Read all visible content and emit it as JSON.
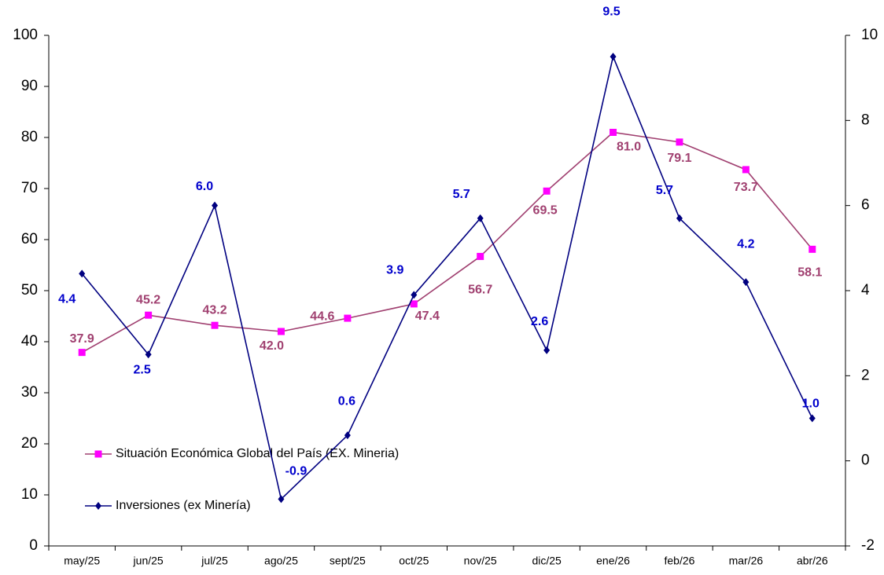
{
  "chart_data": {
    "type": "line",
    "categories": [
      "may/25",
      "jun/25",
      "jul/25",
      "ago/25",
      "sept/25",
      "oct/25",
      "nov/25",
      "dic/25",
      "ene/26",
      "feb/26",
      "mar/26",
      "abr/26"
    ],
    "series": [
      {
        "name": "Situación Económica Global del País (EX. Mineria)",
        "color": "#a04070",
        "marker_color": "#ff00ff",
        "values": [
          37.9,
          45.2,
          43.2,
          42.0,
          44.6,
          47.4,
          56.7,
          69.5,
          81.0,
          79.1,
          73.7,
          58.1
        ],
        "value_labels": [
          "37.9",
          "45.2",
          "43.2",
          "42.0",
          "44.6",
          "47.4",
          "56.7",
          "69.5",
          "81.0",
          "79.1",
          "73.7",
          "58.1"
        ]
      },
      {
        "name": "Inversiones (ex Minería)",
        "color": "#000080",
        "marker_color": "#000080",
        "label_color": "#0000cc",
        "axis": "y2",
        "values": [
          4.4,
          2.5,
          6.0,
          -0.9,
          0.6,
          3.9,
          5.7,
          2.6,
          9.5,
          5.7,
          4.2,
          1.0
        ],
        "value_labels": [
          "4.4",
          "2.5",
          "6.0",
          "-0.9",
          "0.6",
          "3.9",
          "5.7",
          "2.6",
          "9.5",
          "5.7",
          "4.2",
          "1.0"
        ]
      }
    ],
    "ylim": [
      0,
      100
    ],
    "yticks": [
      0,
      10,
      20,
      30,
      40,
      50,
      60,
      70,
      80,
      90,
      100
    ],
    "y2lim": [
      -2,
      10
    ],
    "y2ticks": [
      -2,
      0,
      2,
      4,
      6,
      8,
      10
    ],
    "legend": "lower left"
  }
}
